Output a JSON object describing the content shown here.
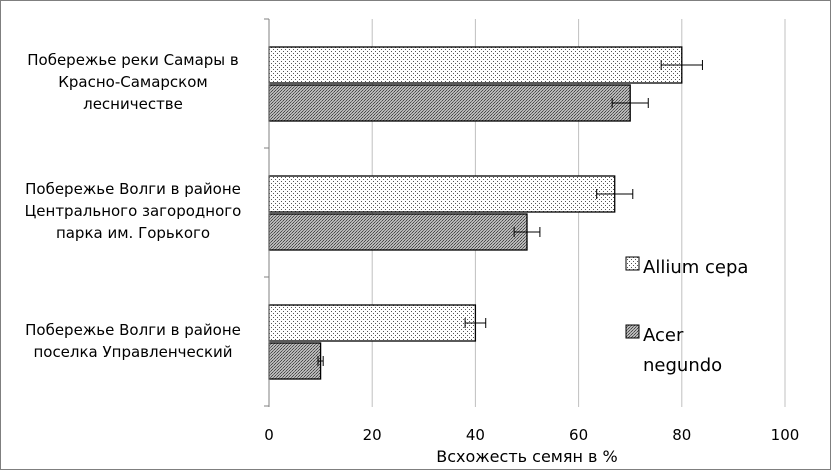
{
  "chart_data": {
    "type": "bar",
    "orientation": "horizontal",
    "categories": [
      "Побережье реки Самары в\nКрасно-Самарском\nлесничестве",
      "Побережье Волги в районе\nЦентрального загородного\nпарка им. Горького",
      "Побережье Волги в районе\nпоселка Управленческий"
    ],
    "series": [
      {
        "name": "Allium cepa",
        "values": [
          80,
          67,
          40
        ],
        "errors": [
          4,
          3.5,
          2
        ],
        "pattern": "dots"
      },
      {
        "name": "Acer negundo",
        "values": [
          70,
          50,
          10
        ],
        "errors": [
          3.5,
          2.5,
          0.5
        ],
        "pattern": "dense"
      }
    ],
    "xlabel": "Всхожесть семян в %",
    "xlim": [
      0,
      100
    ],
    "xticks": [
      "0",
      "20",
      "40",
      "60",
      "80",
      "100"
    ],
    "grid": true,
    "legend_position": "right",
    "legend_labels": [
      {
        "lines": [
          "Allium cepa"
        ]
      },
      {
        "lines": [
          "Acer",
          "negundo"
        ]
      }
    ],
    "colors": {
      "bar_outline": "#000000",
      "grid": "#c0c0c0",
      "frame": "#7f7f7f"
    }
  }
}
